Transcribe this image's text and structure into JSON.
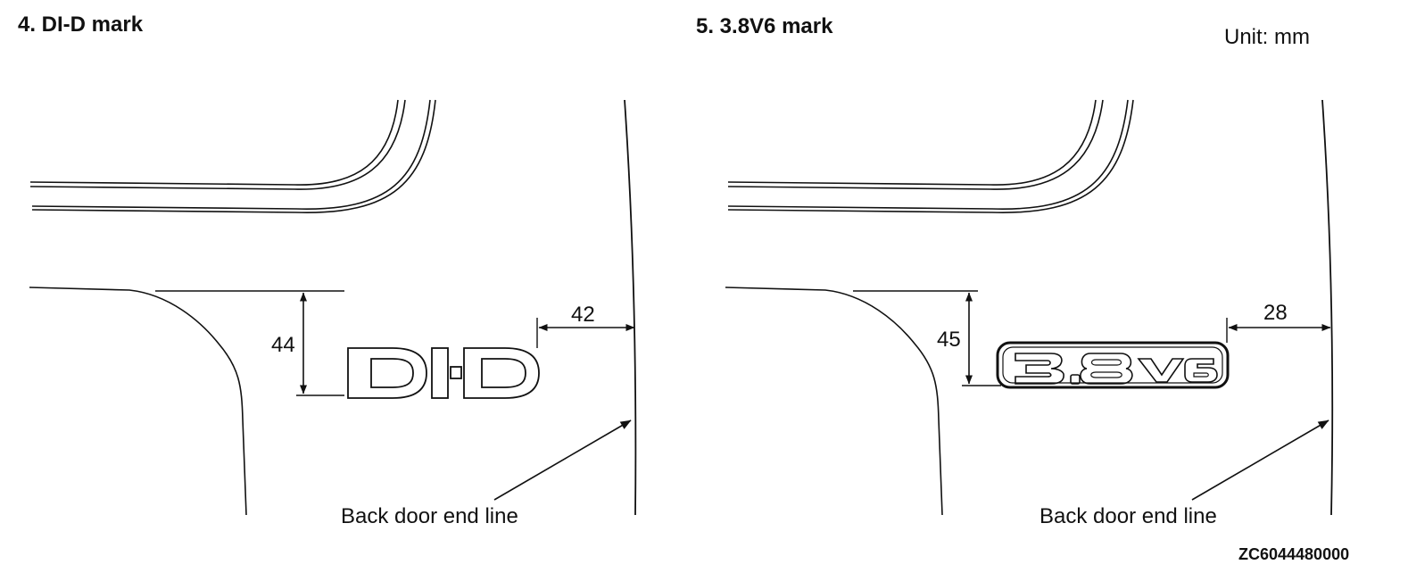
{
  "unit_label": "Unit: mm",
  "figure_code": "ZC6044480000",
  "panels": [
    {
      "title": "4. DI-D mark",
      "badge_text": "DI-D",
      "height_dim": "44",
      "offset_dim": "42",
      "leader_label": "Back door end line"
    },
    {
      "title": "5. 3.8V6 mark",
      "badge_text": "3.8V6",
      "height_dim": "45",
      "offset_dim": "28",
      "leader_label": "Back door end line"
    }
  ]
}
